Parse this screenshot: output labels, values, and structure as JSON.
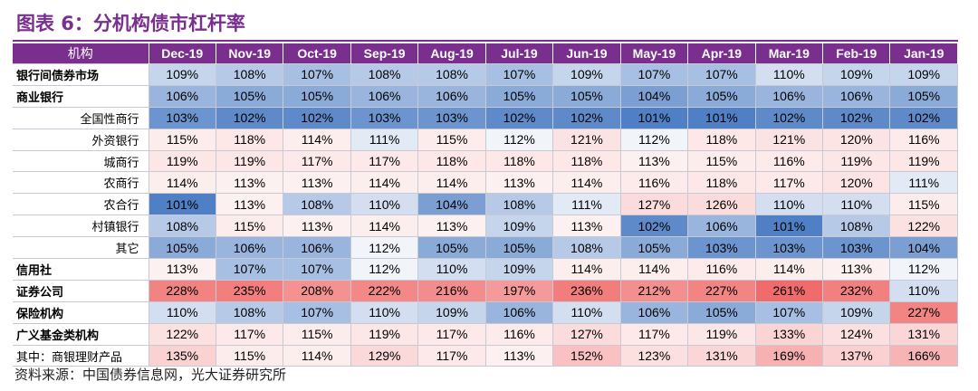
{
  "title": "图表 6：分机构债市杠杆率",
  "source": "资料来源：中国债券信息网，光大证券研究所",
  "chart_data": {
    "type": "table",
    "row_header_label": "机构",
    "columns": [
      "Dec-19",
      "Nov-19",
      "Oct-19",
      "Sep-19",
      "Aug-19",
      "Jul-19",
      "Jun-19",
      "May-19",
      "Apr-19",
      "Mar-19",
      "Feb-19",
      "Jan-19"
    ],
    "rows": [
      {
        "label": "银行间债券市场",
        "level": 0,
        "values": [
          109,
          108,
          107,
          108,
          108,
          107,
          109,
          107,
          107,
          110,
          109,
          109
        ]
      },
      {
        "label": "商业银行",
        "level": 0,
        "values": [
          106,
          105,
          105,
          106,
          106,
          105,
          105,
          104,
          105,
          106,
          106,
          105
        ]
      },
      {
        "label": "全国性商行",
        "level": 1,
        "values": [
          103,
          102,
          102,
          103,
          103,
          102,
          102,
          101,
          101,
          102,
          102,
          102
        ]
      },
      {
        "label": "外资银行",
        "level": 1,
        "values": [
          115,
          118,
          114,
          111,
          115,
          112,
          121,
          112,
          118,
          121,
          120,
          116
        ]
      },
      {
        "label": "城商行",
        "level": 1,
        "values": [
          119,
          119,
          117,
          117,
          118,
          118,
          118,
          113,
          115,
          116,
          119,
          119
        ]
      },
      {
        "label": "农商行",
        "level": 1,
        "values": [
          114,
          113,
          113,
          114,
          114,
          113,
          114,
          116,
          118,
          117,
          120,
          111
        ]
      },
      {
        "label": "农合行",
        "level": 1,
        "values": [
          101,
          113,
          108,
          110,
          104,
          108,
          111,
          127,
          126,
          110,
          110,
          115
        ]
      },
      {
        "label": "村镇银行",
        "level": 1,
        "values": [
          108,
          115,
          113,
          114,
          113,
          109,
          113,
          102,
          106,
          101,
          108,
          122
        ]
      },
      {
        "label": "其它",
        "level": 1,
        "values": [
          105,
          106,
          106,
          112,
          105,
          105,
          108,
          105,
          103,
          103,
          103,
          104
        ]
      },
      {
        "label": "信用社",
        "level": 0,
        "values": [
          113,
          107,
          107,
          112,
          110,
          109,
          114,
          114,
          116,
          114,
          113,
          112
        ]
      },
      {
        "label": "证券公司",
        "level": 0,
        "values": [
          228,
          235,
          208,
          222,
          216,
          197,
          236,
          212,
          227,
          261,
          232,
          110
        ]
      },
      {
        "label": "保险机构",
        "level": 0,
        "values": [
          110,
          108,
          107,
          110,
          109,
          106,
          110,
          106,
          105,
          107,
          109,
          227
        ]
      },
      {
        "label": "广义基金类机构",
        "level": 0,
        "values": [
          122,
          117,
          115,
          119,
          117,
          116,
          127,
          117,
          119,
          133,
          124,
          131
        ]
      },
      {
        "label": "其中：商银理财产品",
        "level": 2,
        "values": [
          135,
          115,
          114,
          129,
          117,
          113,
          152,
          123,
          131,
          169,
          137,
          166
        ]
      }
    ],
    "value_suffix": "%",
    "colors": {
      "header": "#7a2f8f",
      "low": "#4f7fc4",
      "high": "#f06c6c"
    }
  }
}
